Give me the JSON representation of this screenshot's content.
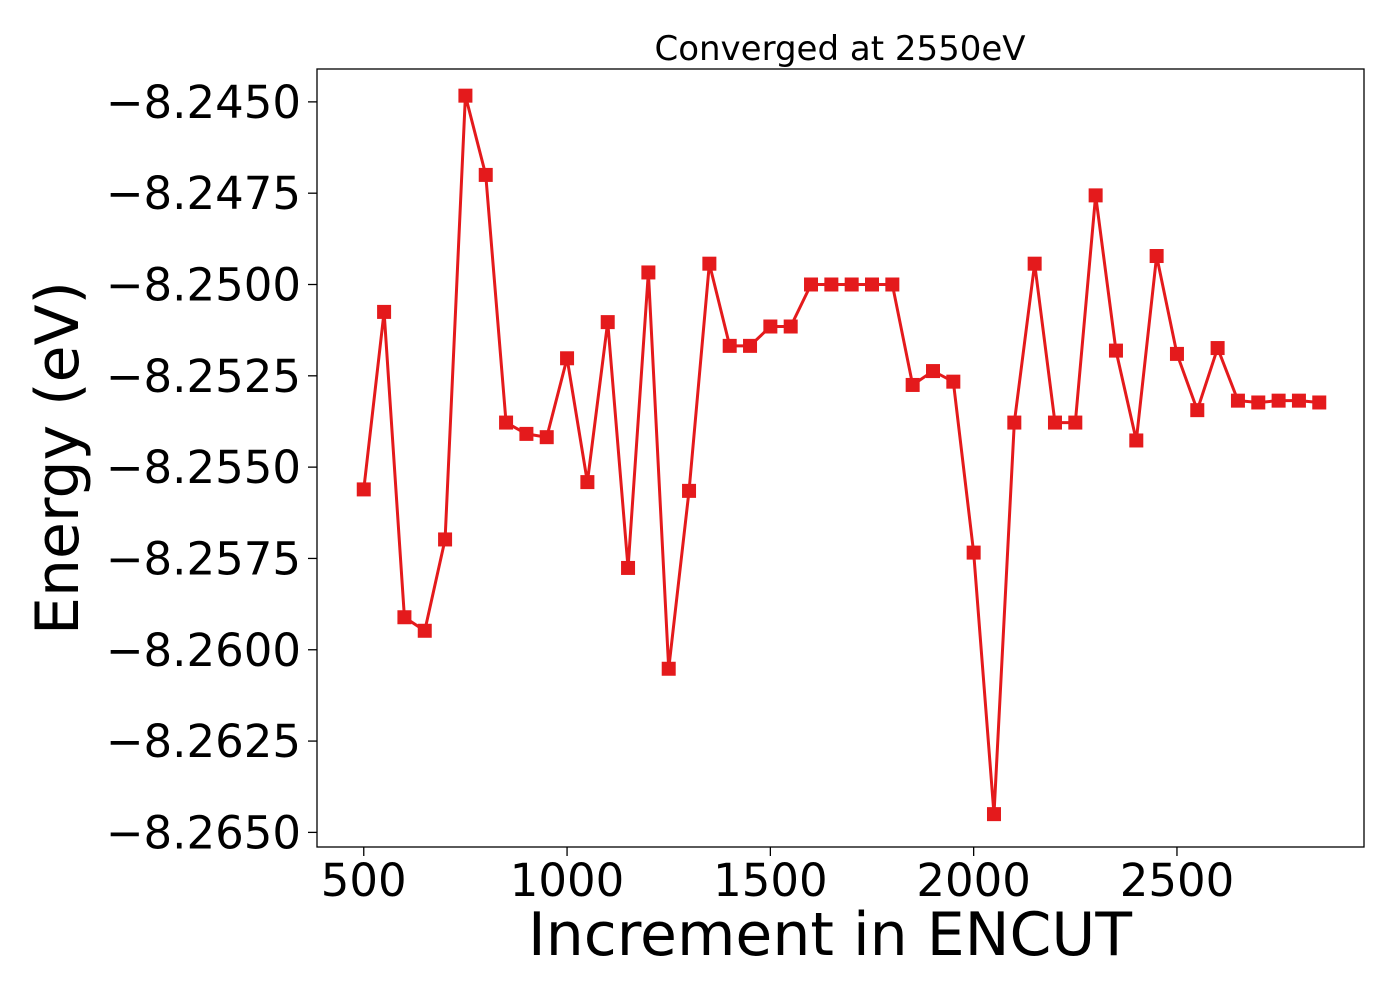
{
  "chart_data": {
    "type": "line",
    "title": "Converged at 2550eV",
    "xlabel": "Increment in ENCUT",
    "ylabel": "Energy (eV)",
    "xlim": [
      385,
      2960
    ],
    "ylim": [
      -8.2654,
      -8.2441
    ],
    "xticks": [
      500,
      1000,
      1500,
      2000,
      2500
    ],
    "xtick_labels": [
      "500",
      "1000",
      "1500",
      "2000",
      "2500"
    ],
    "yticks": [
      -8.245,
      -8.2475,
      -8.25,
      -8.2525,
      -8.255,
      -8.2575,
      -8.26,
      -8.2625,
      -8.265
    ],
    "ytick_labels": [
      "−8.2450",
      "−8.2475",
      "−8.2500",
      "−8.2525",
      "−8.2550",
      "−8.2575",
      "−8.2600",
      "−8.2625",
      "−8.2650"
    ],
    "grid": false,
    "color": "#e41a1c",
    "marker": "square",
    "series": [
      {
        "x": [
          500,
          550,
          600,
          650,
          700,
          750,
          800,
          850,
          900,
          950,
          1000,
          1050,
          1100,
          1150,
          1200,
          1250,
          1300,
          1350,
          1400,
          1450,
          1500,
          1550,
          1600,
          1650,
          1700,
          1750,
          1800,
          1850,
          1900,
          1950,
          2000,
          2050,
          2100,
          2150,
          2200,
          2250,
          2300,
          2350,
          2400,
          2450,
          2500,
          2550,
          2600,
          2650,
          2700,
          2750,
          2800,
          2850
        ],
        "values": [
          -8.25561,
          -8.25075,
          -8.25911,
          -8.25948,
          -8.25698,
          -8.24483,
          -8.247,
          -8.25378,
          -8.25409,
          -8.25418,
          -8.25202,
          -8.25541,
          -8.25103,
          -8.25776,
          -8.24967,
          -8.26052,
          -8.25565,
          -8.24943,
          -8.25168,
          -8.25168,
          -8.25115,
          -8.25115,
          -8.25,
          -8.25,
          -8.25,
          -8.25,
          -8.25,
          -8.25275,
          -8.25237,
          -8.25266,
          -8.25734,
          -8.2645,
          -8.25378,
          -8.24943,
          -8.25378,
          -8.25378,
          -8.24756,
          -8.25181,
          -8.25427,
          -8.24922,
          -8.2519,
          -8.25344,
          -8.25174,
          -8.25318,
          -8.25323,
          -8.25318,
          -8.25318,
          -8.25323
        ]
      }
    ]
  }
}
